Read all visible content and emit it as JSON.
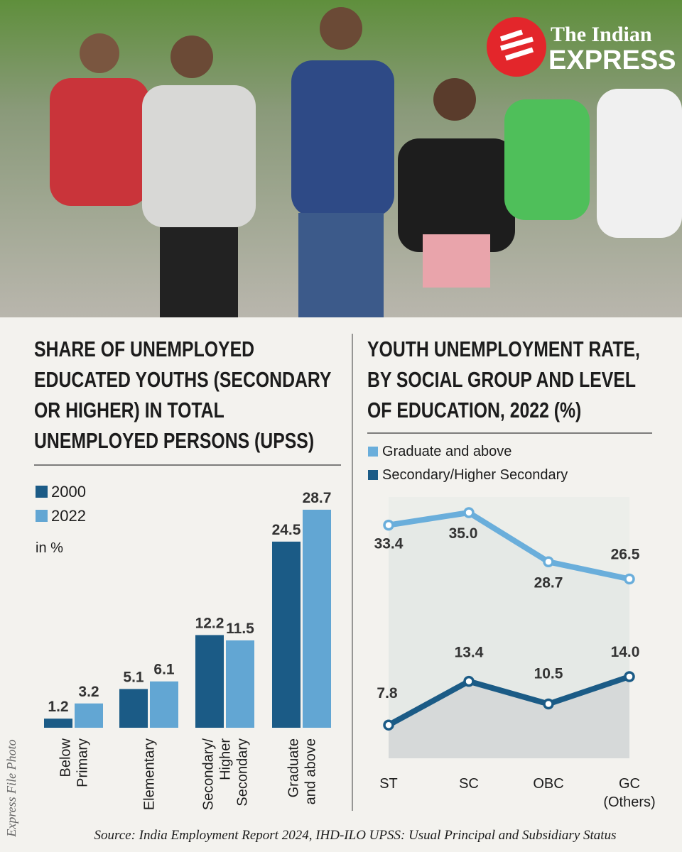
{
  "logo": {
    "line1": "The Indian",
    "line2": "EXPRESS"
  },
  "photo_credit": "Express File Photo",
  "source": "Source: India Employment Report 2024, IHD-ILO UPSS: Usual Principal and Subsidiary Status",
  "chart_data": [
    {
      "type": "bar",
      "title": "SHARE OF UNEMPLOYED EDUCATED YOUTHS (SECONDARY OR HIGHER) IN TOTAL UNEMPLOYED PERSONS (UPSS)",
      "subtitle": "in %",
      "categories": [
        "Below\nPrimary",
        "Elementary",
        "Secondary/\nHigher\nSecondary",
        "Graduate\nand above"
      ],
      "series": [
        {
          "name": "2000",
          "color": "#1b5b86",
          "values": [
            1.2,
            5.1,
            12.2,
            24.5
          ]
        },
        {
          "name": "2022",
          "color": "#62a6d3",
          "values": [
            3.2,
            6.1,
            11.5,
            28.7
          ]
        }
      ]
    },
    {
      "type": "line",
      "title": "YOUTH UNEMPLOYMENT RATE, BY SOCIAL GROUP AND LEVEL OF EDUCATION, 2022 (%)",
      "categories": [
        "ST",
        "SC",
        "OBC",
        "GC\n(Others)"
      ],
      "series": [
        {
          "name": "Graduate and above",
          "color": "#6aaedb",
          "values": [
            33.4,
            35.0,
            28.7,
            26.5
          ],
          "value_labels": [
            "33.4",
            "35.0",
            "28.7",
            "26.5"
          ]
        },
        {
          "name": "Secondary/Higher Secondary",
          "color": "#1b5b86",
          "values": [
            7.8,
            13.4,
            10.5,
            14.0
          ],
          "value_labels": [
            "7.8",
            "13.4",
            "10.5",
            "14.0"
          ]
        }
      ]
    }
  ]
}
